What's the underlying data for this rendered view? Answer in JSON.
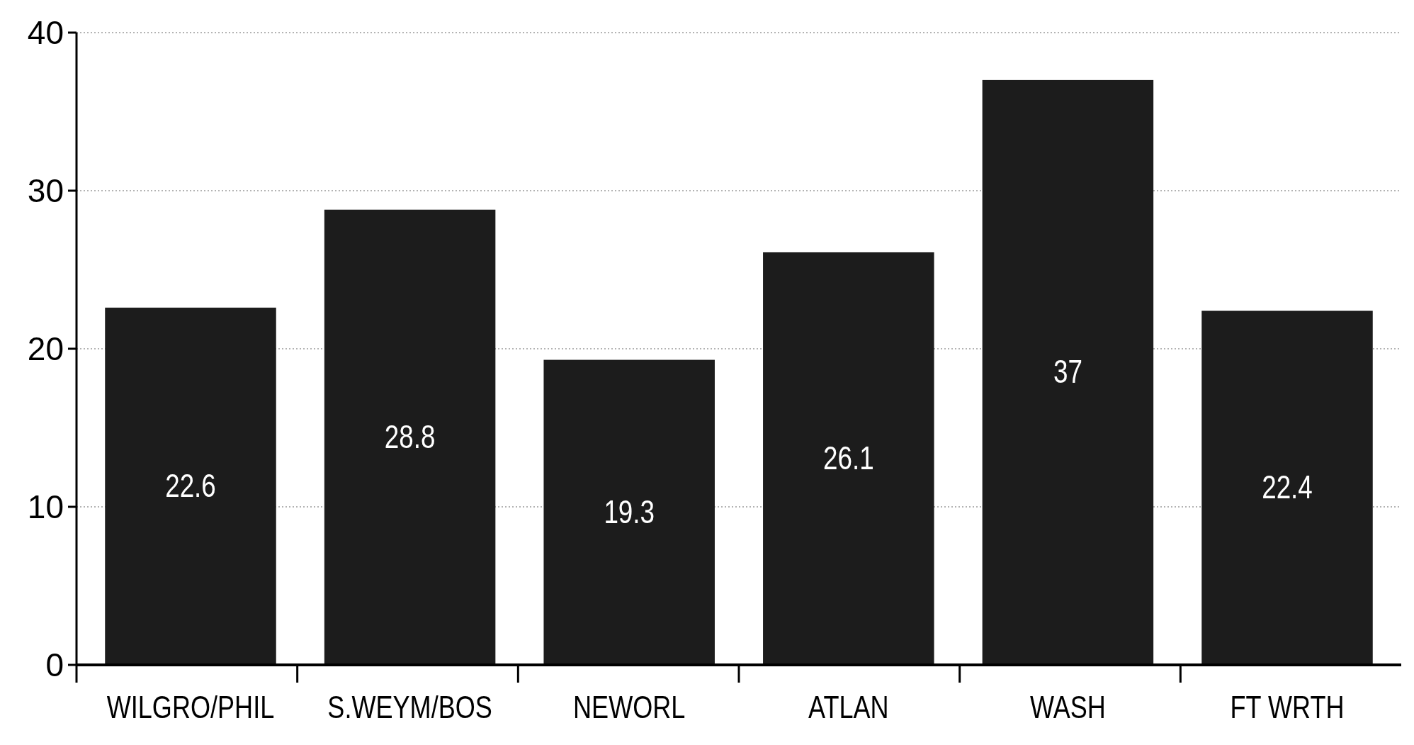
{
  "chart_data": {
    "type": "bar",
    "categories": [
      "WILGRO/PHIL",
      "S.WEYM/BOS",
      "NEWORL",
      "ATLAN",
      "WASH",
      "FT WRTH"
    ],
    "values": [
      22.6,
      28.8,
      19.3,
      26.1,
      37,
      22.4
    ],
    "color": "#1c1c1c",
    "ylim": [
      0,
      40
    ],
    "yticks": [
      0,
      10,
      20,
      30,
      40
    ],
    "grid": "y",
    "data_labels": true
  }
}
